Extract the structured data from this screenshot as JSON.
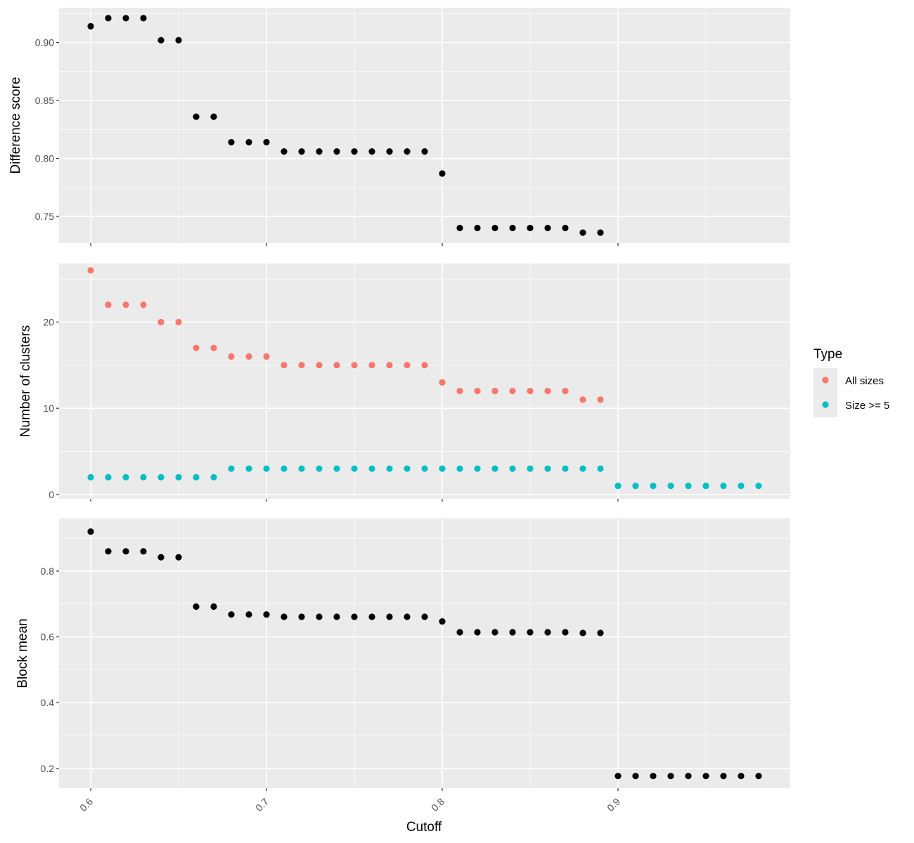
{
  "chart_data": {
    "type": "scatter",
    "xlabel": "Cutoff",
    "xlim": [
      0.582,
      0.998
    ],
    "x_ticks": [
      0.6,
      0.7,
      0.8,
      0.9
    ],
    "x_tick_labels": [
      "0.6",
      "0.7",
      "0.8",
      "0.9"
    ],
    "grid": true,
    "legend": {
      "title": "Type",
      "position": "right",
      "entries": [
        {
          "label": "All sizes",
          "color": "#F8766D"
        },
        {
          "label": "Size >= 5",
          "color": "#00BFC4"
        }
      ]
    },
    "panels": [
      {
        "id": "difference",
        "ylabel": "Difference score",
        "ylim": [
          0.727,
          0.93
        ],
        "y_ticks": [
          0.75,
          0.8,
          0.85,
          0.9
        ],
        "y_tick_labels": [
          "0.75",
          "0.80",
          "0.85",
          "0.90"
        ],
        "series": [
          {
            "color": "#000000",
            "x": [
              0.6,
              0.61,
              0.62,
              0.63,
              0.64,
              0.65,
              0.66,
              0.67,
              0.68,
              0.69,
              0.7,
              0.71,
              0.72,
              0.73,
              0.74,
              0.75,
              0.76,
              0.77,
              0.78,
              0.79,
              0.8,
              0.81,
              0.82,
              0.83,
              0.84,
              0.85,
              0.86,
              0.87,
              0.88,
              0.89
            ],
            "y": [
              0.914,
              0.921,
              0.921,
              0.921,
              0.902,
              0.902,
              0.836,
              0.836,
              0.814,
              0.814,
              0.814,
              0.806,
              0.806,
              0.806,
              0.806,
              0.806,
              0.806,
              0.806,
              0.806,
              0.806,
              0.787,
              0.74,
              0.74,
              0.74,
              0.74,
              0.74,
              0.74,
              0.74,
              0.736,
              0.736
            ]
          }
        ]
      },
      {
        "id": "clusters",
        "ylabel": "Number of clusters",
        "ylim": [
          -0.5,
          26.8
        ],
        "y_ticks": [
          0,
          10,
          20
        ],
        "y_tick_labels": [
          "0",
          "10",
          "20"
        ],
        "series": [
          {
            "name": "All sizes",
            "color": "#F8766D",
            "x": [
              0.6,
              0.61,
              0.62,
              0.63,
              0.64,
              0.65,
              0.66,
              0.67,
              0.68,
              0.69,
              0.7,
              0.71,
              0.72,
              0.73,
              0.74,
              0.75,
              0.76,
              0.77,
              0.78,
              0.79,
              0.8,
              0.81,
              0.82,
              0.83,
              0.84,
              0.85,
              0.86,
              0.87,
              0.88,
              0.89
            ],
            "y": [
              26,
              22,
              22,
              22,
              20,
              20,
              17,
              17,
              16,
              16,
              16,
              15,
              15,
              15,
              15,
              15,
              15,
              15,
              15,
              15,
              13,
              12,
              12,
              12,
              12,
              12,
              12,
              12,
              11,
              11
            ]
          },
          {
            "name": "Size >= 5",
            "color": "#00BFC4",
            "x": [
              0.6,
              0.61,
              0.62,
              0.63,
              0.64,
              0.65,
              0.66,
              0.67,
              0.68,
              0.69,
              0.7,
              0.71,
              0.72,
              0.73,
              0.74,
              0.75,
              0.76,
              0.77,
              0.78,
              0.79,
              0.8,
              0.81,
              0.82,
              0.83,
              0.84,
              0.85,
              0.86,
              0.87,
              0.88,
              0.89,
              0.9,
              0.91,
              0.92,
              0.93,
              0.94,
              0.95,
              0.96,
              0.97,
              0.98
            ],
            "y": [
              2,
              2,
              2,
              2,
              2,
              2,
              2,
              2,
              3,
              3,
              3,
              3,
              3,
              3,
              3,
              3,
              3,
              3,
              3,
              3,
              3,
              3,
              3,
              3,
              3,
              3,
              3,
              3,
              3,
              3,
              1,
              1,
              1,
              1,
              1,
              1,
              1,
              1,
              1
            ]
          }
        ]
      },
      {
        "id": "blockmean",
        "ylabel": "Block mean",
        "ylim": [
          0.14,
          0.96
        ],
        "y_ticks": [
          0.2,
          0.4,
          0.6,
          0.8
        ],
        "y_tick_labels": [
          "0.2",
          "0.4",
          "0.6",
          "0.8"
        ],
        "series": [
          {
            "color": "#000000",
            "x": [
              0.6,
              0.61,
              0.62,
              0.63,
              0.64,
              0.65,
              0.66,
              0.67,
              0.68,
              0.69,
              0.7,
              0.71,
              0.72,
              0.73,
              0.74,
              0.75,
              0.76,
              0.77,
              0.78,
              0.79,
              0.8,
              0.81,
              0.82,
              0.83,
              0.84,
              0.85,
              0.86,
              0.87,
              0.88,
              0.89,
              0.9,
              0.91,
              0.92,
              0.93,
              0.94,
              0.95,
              0.96,
              0.97,
              0.98
            ],
            "y": [
              0.92,
              0.86,
              0.86,
              0.86,
              0.842,
              0.842,
              0.692,
              0.692,
              0.668,
              0.668,
              0.668,
              0.661,
              0.661,
              0.661,
              0.661,
              0.661,
              0.661,
              0.661,
              0.661,
              0.661,
              0.647,
              0.614,
              0.614,
              0.614,
              0.614,
              0.614,
              0.614,
              0.614,
              0.612,
              0.612,
              0.177,
              0.177,
              0.177,
              0.177,
              0.177,
              0.177,
              0.177,
              0.177,
              0.177
            ]
          }
        ]
      }
    ]
  }
}
